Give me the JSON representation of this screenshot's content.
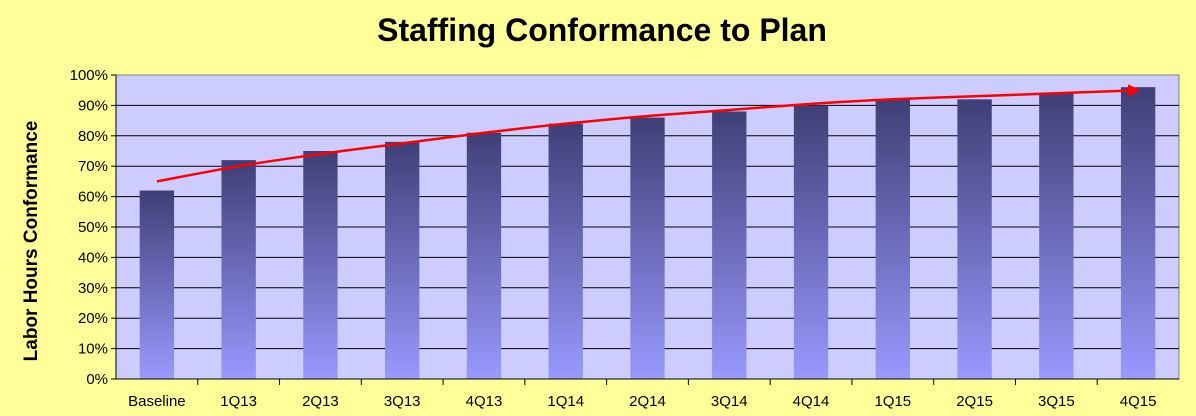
{
  "chart_data": {
    "type": "bar",
    "title": "Staffing Conformance to Plan",
    "xlabel": "",
    "ylabel": "Labor Hours Conformance",
    "ylim": [
      0,
      100
    ],
    "y_tick_labels": [
      "0%",
      "10%",
      "20%",
      "30%",
      "40%",
      "50%",
      "60%",
      "70%",
      "80%",
      "90%",
      "100%"
    ],
    "categories": [
      "Baseline",
      "1Q13",
      "2Q13",
      "3Q13",
      "4Q13",
      "1Q14",
      "2Q14",
      "3Q14",
      "4Q14",
      "1Q15",
      "2Q15",
      "3Q15",
      "4Q15"
    ],
    "values": [
      62,
      72,
      75,
      78,
      81,
      84,
      86,
      88,
      90,
      92,
      92,
      94,
      96
    ],
    "trend": [
      65,
      70,
      74,
      77.5,
      81,
      84,
      86.5,
      88.5,
      90.5,
      92,
      93,
      94,
      95
    ],
    "grid": true,
    "legend": "none",
    "colors": {
      "page_background": "#ffff99",
      "plot_background": "#ccccff",
      "bar_top": "#3f3f76",
      "bar_bottom": "#9999ff",
      "trend": "#ff0000"
    }
  }
}
